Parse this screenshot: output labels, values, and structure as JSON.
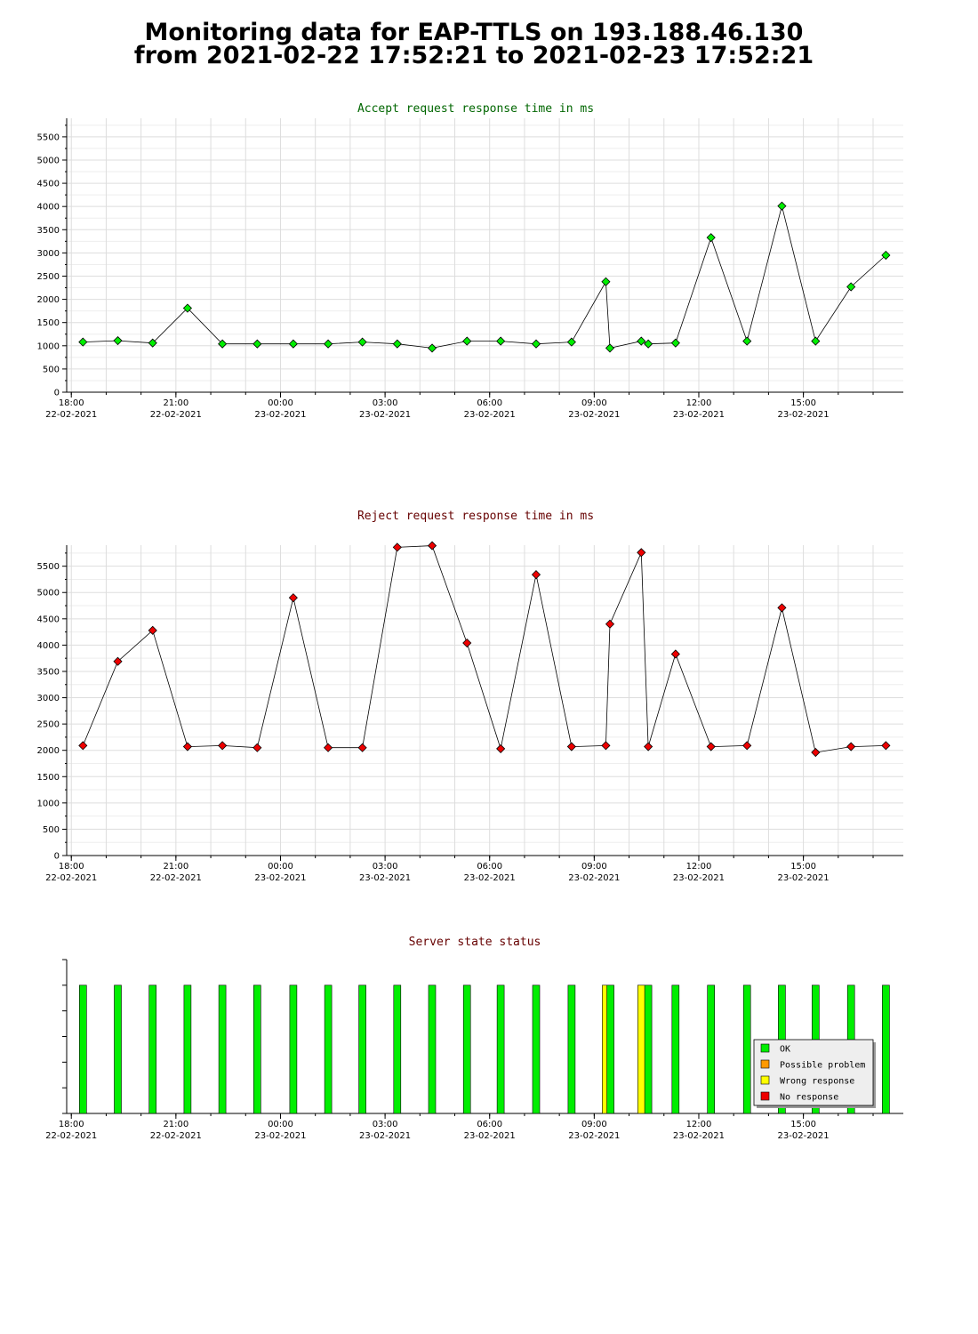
{
  "header": {
    "line1": "Monitoring data for EAP-TTLS on 193.188.46.130",
    "line2": "from 2021-02-22 17:52:21 to 2021-02-23 17:52:21"
  },
  "colors": {
    "accept_title": "#006600",
    "reject_title": "#660000",
    "status_title": "#660000",
    "accept_marker": "#00ee00",
    "reject_marker": "#ee0000",
    "ok": "#00ee00",
    "possible_problem": "#ff9900",
    "wrong_response": "#ffff00",
    "no_response": "#ee0000"
  },
  "chart_data": [
    {
      "type": "line",
      "title": "Accept request response time in ms",
      "ylim": [
        0,
        5900
      ],
      "yticks": [
        0,
        500,
        1000,
        1500,
        2000,
        2500,
        3000,
        3500,
        4000,
        4500,
        5000,
        5500
      ],
      "xlim": [
        "2021-02-22 17:52",
        "2021-02-23 17:52"
      ],
      "xtick_labels": [
        {
          "time": "18:00",
          "date": "22-02-2021"
        },
        {
          "time": "21:00",
          "date": "22-02-2021"
        },
        {
          "time": "00:00",
          "date": "23-02-2021"
        },
        {
          "time": "03:00",
          "date": "23-02-2021"
        },
        {
          "time": "06:00",
          "date": "23-02-2021"
        },
        {
          "time": "09:00",
          "date": "23-02-2021"
        },
        {
          "time": "12:00",
          "date": "23-02-2021"
        },
        {
          "time": "15:00",
          "date": "23-02-2021"
        }
      ],
      "grid": true,
      "x": [
        "2021-02-22 18:20",
        "2021-02-22 19:20",
        "2021-02-22 20:20",
        "2021-02-22 21:20",
        "2021-02-22 22:20",
        "2021-02-22 23:20",
        "2021-02-23 00:22",
        "2021-02-23 01:22",
        "2021-02-23 02:21",
        "2021-02-23 03:21",
        "2021-02-23 04:21",
        "2021-02-23 05:21",
        "2021-02-23 06:19",
        "2021-02-23 07:20",
        "2021-02-23 08:21",
        "2021-02-23 09:20",
        "2021-02-23 09:27",
        "2021-02-23 10:21",
        "2021-02-23 10:33",
        "2021-02-23 11:20",
        "2021-02-23 12:21",
        "2021-02-23 13:23",
        "2021-02-23 14:23",
        "2021-02-23 15:21",
        "2021-02-23 16:22",
        "2021-02-23 17:22"
      ],
      "values": [
        1080,
        1110,
        1060,
        1810,
        1040,
        1040,
        1040,
        1040,
        1080,
        1040,
        950,
        1100,
        1100,
        1040,
        1080,
        2380,
        950,
        1100,
        1040,
        1060,
        3330,
        1100,
        4010,
        1100,
        2270,
        2950
      ]
    },
    {
      "type": "line",
      "title": "Reject request response time in ms",
      "ylim": [
        0,
        5900
      ],
      "yticks": [
        0,
        500,
        1000,
        1500,
        2000,
        2500,
        3000,
        3500,
        4000,
        4500,
        5000,
        5500
      ],
      "xlim": [
        "2021-02-22 17:52",
        "2021-02-23 17:52"
      ],
      "xtick_labels": [
        {
          "time": "18:00",
          "date": "22-02-2021"
        },
        {
          "time": "21:00",
          "date": "22-02-2021"
        },
        {
          "time": "00:00",
          "date": "23-02-2021"
        },
        {
          "time": "03:00",
          "date": "23-02-2021"
        },
        {
          "time": "06:00",
          "date": "23-02-2021"
        },
        {
          "time": "09:00",
          "date": "23-02-2021"
        },
        {
          "time": "12:00",
          "date": "23-02-2021"
        },
        {
          "time": "15:00",
          "date": "23-02-2021"
        }
      ],
      "grid": true,
      "x": [
        "2021-02-22 18:20",
        "2021-02-22 19:20",
        "2021-02-22 20:20",
        "2021-02-22 21:20",
        "2021-02-22 22:20",
        "2021-02-22 23:20",
        "2021-02-23 00:22",
        "2021-02-23 01:22",
        "2021-02-23 02:21",
        "2021-02-23 03:21",
        "2021-02-23 04:21",
        "2021-02-23 05:21",
        "2021-02-23 06:19",
        "2021-02-23 07:20",
        "2021-02-23 08:21",
        "2021-02-23 09:20",
        "2021-02-23 09:27",
        "2021-02-23 10:21",
        "2021-02-23 10:33",
        "2021-02-23 11:20",
        "2021-02-23 12:21",
        "2021-02-23 13:23",
        "2021-02-23 14:23",
        "2021-02-23 15:21",
        "2021-02-23 16:22",
        "2021-02-23 17:22"
      ],
      "values": [
        2090,
        3690,
        4280,
        2070,
        2090,
        2050,
        4900,
        2050,
        2050,
        5860,
        5890,
        4040,
        2030,
        5340,
        2070,
        2090,
        4400,
        5760,
        2070,
        3830,
        2070,
        2090,
        4710,
        1960,
        2070,
        2090
      ]
    },
    {
      "type": "bar",
      "title": "Server state status",
      "xlim": [
        "2021-02-22 17:52",
        "2021-02-23 17:52"
      ],
      "xtick_labels": [
        {
          "time": "18:00",
          "date": "22-02-2021"
        },
        {
          "time": "21:00",
          "date": "22-02-2021"
        },
        {
          "time": "00:00",
          "date": "23-02-2021"
        },
        {
          "time": "03:00",
          "date": "23-02-2021"
        },
        {
          "time": "06:00",
          "date": "23-02-2021"
        },
        {
          "time": "09:00",
          "date": "23-02-2021"
        },
        {
          "time": "12:00",
          "date": "23-02-2021"
        },
        {
          "time": "15:00",
          "date": "23-02-2021"
        }
      ],
      "legend": [
        {
          "label": "OK",
          "color": "#00ee00"
        },
        {
          "label": "Possible problem",
          "color": "#ff9900"
        },
        {
          "label": "Wrong response",
          "color": "#ffff00"
        },
        {
          "label": "No response",
          "color": "#ee0000"
        }
      ],
      "legend_position": "lower-right",
      "states": [
        {
          "x": "2021-02-22 18:20",
          "status": "OK"
        },
        {
          "x": "2021-02-22 19:20",
          "status": "OK"
        },
        {
          "x": "2021-02-22 20:20",
          "status": "OK"
        },
        {
          "x": "2021-02-22 21:20",
          "status": "OK"
        },
        {
          "x": "2021-02-22 22:20",
          "status": "OK"
        },
        {
          "x": "2021-02-22 23:20",
          "status": "OK"
        },
        {
          "x": "2021-02-23 00:22",
          "status": "OK"
        },
        {
          "x": "2021-02-23 01:22",
          "status": "OK"
        },
        {
          "x": "2021-02-23 02:21",
          "status": "OK"
        },
        {
          "x": "2021-02-23 03:21",
          "status": "OK"
        },
        {
          "x": "2021-02-23 04:21",
          "status": "OK"
        },
        {
          "x": "2021-02-23 05:21",
          "status": "OK"
        },
        {
          "x": "2021-02-23 06:19",
          "status": "OK"
        },
        {
          "x": "2021-02-23 07:20",
          "status": "OK"
        },
        {
          "x": "2021-02-23 08:21",
          "status": "OK"
        },
        {
          "x": "2021-02-23 09:20",
          "status": "Wrong response"
        },
        {
          "x": "2021-02-23 09:28",
          "status": "OK"
        },
        {
          "x": "2021-02-23 10:21",
          "status": "Wrong response"
        },
        {
          "x": "2021-02-23 10:33",
          "status": "OK"
        },
        {
          "x": "2021-02-23 11:20",
          "status": "OK"
        },
        {
          "x": "2021-02-23 12:21",
          "status": "OK"
        },
        {
          "x": "2021-02-23 13:23",
          "status": "OK"
        },
        {
          "x": "2021-02-23 14:23",
          "status": "OK"
        },
        {
          "x": "2021-02-23 15:21",
          "status": "OK"
        },
        {
          "x": "2021-02-23 16:22",
          "status": "OK"
        },
        {
          "x": "2021-02-23 17:22",
          "status": "OK"
        }
      ]
    }
  ]
}
